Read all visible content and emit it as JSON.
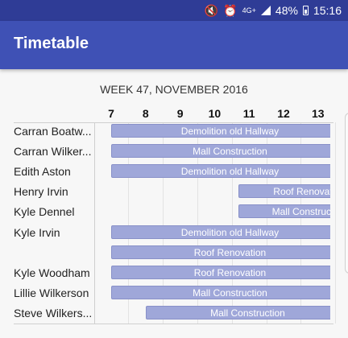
{
  "status_bar": {
    "icons": [
      "mute-icon",
      "alarm-icon",
      "network-icon",
      "signal-icon",
      "battery-icon"
    ],
    "network": "4G+",
    "battery": "48%",
    "time": "15:16"
  },
  "app_bar": {
    "title": "Timetable"
  },
  "timetable": {
    "week_label": "WEEK 47, NOVEMBER 2016",
    "hours": [
      "7",
      "8",
      "9",
      "10",
      "11",
      "12",
      "13"
    ],
    "rows": [
      {
        "name": "Carran Boatw...",
        "event": "Demolition old Hallway",
        "start": 7,
        "end": 13.9
      },
      {
        "name": "Carran Wilker...",
        "event": "Mall Construction",
        "start": 7,
        "end": 13.9
      },
      {
        "name": "Edith Aston",
        "event": "Demolition old Hallway",
        "start": 7,
        "end": 13.9
      },
      {
        "name": "Henry Irvin",
        "event": "Roof Renovation",
        "start": 10.7,
        "end": 14.8
      },
      {
        "name": "Kyle Dennel",
        "event": "Mall Construction",
        "start": 10.7,
        "end": 14.8
      },
      {
        "name": "Kyle Irvin",
        "event": "Demolition old Hallway",
        "start": 7,
        "end": 13.9
      },
      {
        "name": "",
        "event": "Roof Renovation",
        "start": 7,
        "end": 13.9
      },
      {
        "name": "Kyle Woodham",
        "event": "Roof Renovation",
        "start": 7,
        "end": 13.9
      },
      {
        "name": "Lillie Wilkerson",
        "event": "Mall Construction",
        "start": 7,
        "end": 13.9
      },
      {
        "name": "Steve Wilkers...",
        "event": "Mall Construction",
        "start": 8,
        "end": 13.9
      }
    ]
  },
  "colors": {
    "status_bar": "#2f3c96",
    "app_bar": "#3f51b5",
    "event_fill": "#9fa7d9"
  }
}
